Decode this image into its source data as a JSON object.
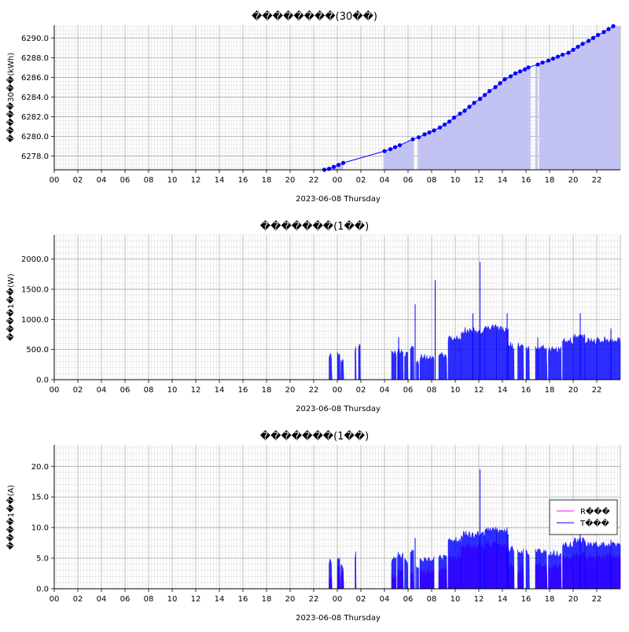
{
  "chart_data": [
    {
      "type": "area",
      "title": "��������(30��)",
      "ylabel": "�����30��(kWh)",
      "xlabel": "2023-06-08 Thursday",
      "x_tick_labels": [
        "00",
        "02",
        "04",
        "06",
        "08",
        "10",
        "12",
        "14",
        "16",
        "18",
        "20",
        "22",
        "00",
        "02",
        "04",
        "06",
        "08",
        "10",
        "12",
        "14",
        "16",
        "18",
        "20",
        "22"
      ],
      "y_tick_labels": [
        "6278.0",
        "6280.0",
        "6282.0",
        "6284.0",
        "6286.0",
        "6288.0",
        "6290.0"
      ],
      "ylim": [
        6276.6,
        6291.3
      ],
      "xlim": [
        0,
        48
      ],
      "grid": true,
      "series": [
        {
          "color": "#0000ff",
          "fill": "#c3c3f3",
          "gaps_x": [
            [
              24.5,
              27.9
            ],
            [
              30.5,
              30.8
            ],
            [
              40.4,
              40.8
            ],
            [
              41.0,
              41.1
            ]
          ],
          "x": [
            22.9,
            23.3,
            23.7,
            24.1,
            24.5,
            28.0,
            28.5,
            28.9,
            29.3,
            30.4,
            30.9,
            31.4,
            31.8,
            32.2,
            32.7,
            33.1,
            33.5,
            33.9,
            34.4,
            34.8,
            35.2,
            35.6,
            36.1,
            36.5,
            36.9,
            37.4,
            37.8,
            38.2,
            38.7,
            39.1,
            39.5,
            39.9,
            40.2,
            41.0,
            41.4,
            41.9,
            42.3,
            42.7,
            43.1,
            43.6,
            44.0,
            44.4,
            44.8,
            45.3,
            45.7,
            46.1,
            46.6,
            47.0,
            47.4
          ],
          "y": [
            6276.6,
            6276.7,
            6276.9,
            6277.1,
            6277.3,
            6278.5,
            6278.7,
            6278.9,
            6279.1,
            6279.7,
            6279.9,
            6280.2,
            6280.4,
            6280.6,
            6280.9,
            6281.2,
            6281.5,
            6281.9,
            6282.3,
            6282.6,
            6283.0,
            6283.4,
            6283.8,
            6284.2,
            6284.6,
            6285.0,
            6285.4,
            6285.8,
            6286.1,
            6286.4,
            6286.6,
            6286.8,
            6287.0,
            6287.3,
            6287.5,
            6287.7,
            6287.9,
            6288.1,
            6288.3,
            6288.5,
            6288.8,
            6289.1,
            6289.4,
            6289.7,
            6290.0,
            6290.3,
            6290.6,
            6290.9,
            6291.2
          ]
        }
      ]
    },
    {
      "type": "bar",
      "title": "�������(1��)",
      "ylabel": "����1��(W)",
      "xlabel": "2023-06-08 Thursday",
      "x_tick_labels": [
        "00",
        "02",
        "04",
        "06",
        "08",
        "10",
        "12",
        "14",
        "16",
        "18",
        "20",
        "22",
        "00",
        "02",
        "04",
        "06",
        "08",
        "10",
        "12",
        "14",
        "16",
        "18",
        "20",
        "22"
      ],
      "y_tick_labels": [
        "0.0",
        "500.0",
        "1000.0",
        "1500.0",
        "2000.0"
      ],
      "ylim": [
        0,
        2400
      ],
      "xlim": [
        0,
        48
      ],
      "grid": true,
      "series": [
        {
          "color": "#0000ff",
          "segments": [
            {
              "x": [
                23.3,
                23.55
              ],
              "base": 380
            },
            {
              "x": [
                24.0,
                24.25
              ],
              "base": 420
            },
            {
              "x": [
                24.3,
                24.55
              ],
              "base": 300
            },
            {
              "x": [
                25.5,
                25.6
              ],
              "base": 520
            },
            {
              "x": [
                25.8,
                25.95
              ],
              "base": 570
            },
            {
              "x": [
                28.6,
                29.0
              ],
              "base": 430
            },
            {
              "x": [
                29.1,
                29.6
              ],
              "base": 470
            },
            {
              "x": [
                29.7,
                30.0
              ],
              "base": 400
            },
            {
              "x": [
                30.2,
                30.5
              ],
              "base": 530
            },
            {
              "x": [
                30.7,
                30.9
              ],
              "base": 300
            },
            {
              "x": [
                31.0,
                32.2
              ],
              "base": 360
            },
            {
              "x": [
                32.6,
                33.3
              ],
              "base": 400
            },
            {
              "x": [
                33.4,
                34.5
              ],
              "base": 680
            },
            {
              "x": [
                34.5,
                36.5
              ],
              "base": 810
            },
            {
              "x": [
                36.5,
                37.5
              ],
              "base": 870
            },
            {
              "x": [
                37.5,
                38.5
              ],
              "base": 820
            },
            {
              "x": [
                38.5,
                39.0
              ],
              "base": 560
            },
            {
              "x": [
                39.3,
                39.8
              ],
              "base": 550
            },
            {
              "x": [
                40.0,
                40.3
              ],
              "base": 500
            },
            {
              "x": [
                40.8,
                41.8
              ],
              "base": 530
            },
            {
              "x": [
                41.9,
                43.0
              ],
              "base": 500
            },
            {
              "x": [
                43.1,
                44.0
              ],
              "base": 640
            },
            {
              "x": [
                44.0,
                45.0
              ],
              "base": 700
            },
            {
              "x": [
                45.0,
                46.0
              ],
              "base": 630
            },
            {
              "x": [
                46.0,
                48.0
              ],
              "base": 650
            }
          ],
          "spikes": [
            {
              "x": 29.2,
              "y": 700
            },
            {
              "x": 30.6,
              "y": 1250
            },
            {
              "x": 32.3,
              "y": 1650
            },
            {
              "x": 35.5,
              "y": 1100
            },
            {
              "x": 36.1,
              "y": 1950
            },
            {
              "x": 38.4,
              "y": 1100
            },
            {
              "x": 41.0,
              "y": 700
            },
            {
              "x": 44.6,
              "y": 1100
            },
            {
              "x": 47.2,
              "y": 850
            }
          ]
        }
      ]
    },
    {
      "type": "bar",
      "title": "�������(1��)",
      "ylabel": "����1��(A)",
      "xlabel": "2023-06-08 Thursday",
      "x_tick_labels": [
        "00",
        "02",
        "04",
        "06",
        "08",
        "10",
        "12",
        "14",
        "16",
        "18",
        "20",
        "22",
        "00",
        "02",
        "04",
        "06",
        "08",
        "10",
        "12",
        "14",
        "16",
        "18",
        "20",
        "22"
      ],
      "y_tick_labels": [
        "0.0",
        "5.0",
        "10.0",
        "15.0",
        "20.0"
      ],
      "ylim": [
        0,
        23.5
      ],
      "xlim": [
        0,
        48
      ],
      "grid": true,
      "legend": {
        "position": "right",
        "entries": [
          {
            "label": "R���",
            "color": "#ff00ff"
          },
          {
            "label": "T���",
            "color": "#0000ff"
          }
        ]
      },
      "series": [
        {
          "name": "R���",
          "color": "#ff00ff",
          "segments": [
            {
              "x": [
                23.3,
                23.55
              ],
              "base": 2.0
            },
            {
              "x": [
                24.0,
                24.25
              ],
              "base": 3.5
            },
            {
              "x": [
                24.3,
                24.55
              ],
              "base": 2.5
            },
            {
              "x": [
                28.6,
                29.0
              ],
              "base": 2.0
            },
            {
              "x": [
                29.1,
                29.6
              ],
              "base": 2.5
            },
            {
              "x": [
                30.2,
                30.5
              ],
              "base": 2.5
            },
            {
              "x": [
                31.0,
                32.2
              ],
              "base": 2.8
            },
            {
              "x": [
                32.6,
                33.3
              ],
              "base": 3.0
            },
            {
              "x": [
                33.4,
                34.5
              ],
              "base": 5.0
            },
            {
              "x": [
                34.5,
                36.5
              ],
              "base": 6.8
            },
            {
              "x": [
                36.5,
                37.5
              ],
              "base": 7.3
            },
            {
              "x": [
                37.5,
                38.5
              ],
              "base": 6.8
            },
            {
              "x": [
                38.5,
                39.0
              ],
              "base": 3.5
            },
            {
              "x": [
                39.3,
                39.8
              ],
              "base": 3.0
            },
            {
              "x": [
                40.8,
                41.8
              ],
              "base": 3.5
            },
            {
              "x": [
                41.9,
                43.0
              ],
              "base": 3.5
            },
            {
              "x": [
                43.1,
                44.0
              ],
              "base": 5.0
            },
            {
              "x": [
                44.0,
                45.0
              ],
              "base": 5.5
            },
            {
              "x": [
                45.0,
                46.0
              ],
              "base": 4.8
            },
            {
              "x": [
                46.0,
                48.0
              ],
              "base": 5.2
            }
          ]
        },
        {
          "name": "T���",
          "color": "#0000ff",
          "segments": [
            {
              "x": [
                23.3,
                23.55
              ],
              "base": 4.5
            },
            {
              "x": [
                24.0,
                24.25
              ],
              "base": 5.0
            },
            {
              "x": [
                24.3,
                24.55
              ],
              "base": 3.5
            },
            {
              "x": [
                25.5,
                25.6
              ],
              "base": 5.5
            },
            {
              "x": [
                28.6,
                29.0
              ],
              "base": 4.8
            },
            {
              "x": [
                29.1,
                29.6
              ],
              "base": 5.5
            },
            {
              "x": [
                29.7,
                30.0
              ],
              "base": 4.5
            },
            {
              "x": [
                30.2,
                30.5
              ],
              "base": 6.0
            },
            {
              "x": [
                30.7,
                30.9
              ],
              "base": 3.5
            },
            {
              "x": [
                31.0,
                32.2
              ],
              "base": 4.8
            },
            {
              "x": [
                32.6,
                33.3
              ],
              "base": 5.0
            },
            {
              "x": [
                33.4,
                34.5
              ],
              "base": 7.8
            },
            {
              "x": [
                34.5,
                36.5
              ],
              "base": 8.8
            },
            {
              "x": [
                36.5,
                37.5
              ],
              "base": 9.6
            },
            {
              "x": [
                37.5,
                38.5
              ],
              "base": 9.2
            },
            {
              "x": [
                38.5,
                39.0
              ],
              "base": 6.5
            },
            {
              "x": [
                39.3,
                39.8
              ],
              "base": 6.0
            },
            {
              "x": [
                40.0,
                40.3
              ],
              "base": 5.8
            },
            {
              "x": [
                40.8,
                41.8
              ],
              "base": 6.0
            },
            {
              "x": [
                41.9,
                43.0
              ],
              "base": 5.7
            },
            {
              "x": [
                43.1,
                44.0
              ],
              "base": 7.0
            },
            {
              "x": [
                44.0,
                45.0
              ],
              "base": 7.8
            },
            {
              "x": [
                45.0,
                46.0
              ],
              "base": 7.2
            },
            {
              "x": [
                46.0,
                48.0
              ],
              "base": 7.2
            }
          ],
          "spikes": [
            {
              "x": 30.6,
              "y": 8.3
            },
            {
              "x": 36.1,
              "y": 19.5
            },
            {
              "x": 38.4,
              "y": 10.0
            },
            {
              "x": 44.6,
              "y": 11.0
            },
            {
              "x": 47.2,
              "y": 8.0
            }
          ]
        }
      ]
    }
  ]
}
